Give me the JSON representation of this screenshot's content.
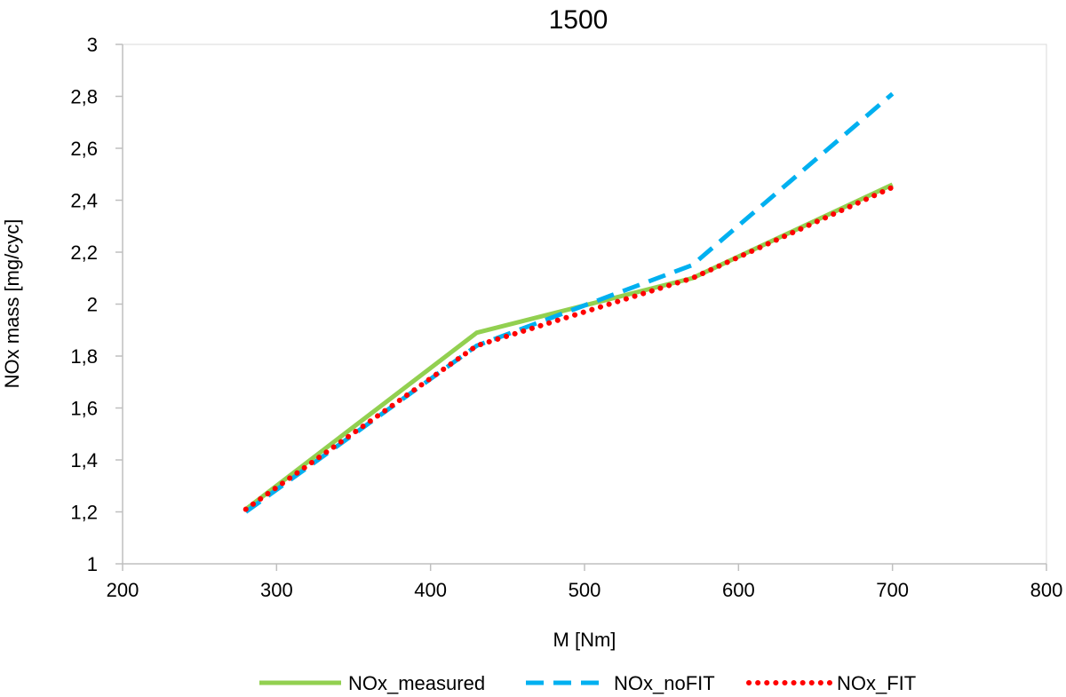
{
  "chart_data": {
    "type": "line",
    "title": "1500",
    "xlabel": "M [Nm]",
    "ylabel": "NOx mass [mg/cyc]",
    "xlim": [
      200,
      800
    ],
    "ylim": [
      1,
      3
    ],
    "x_ticks": [
      "200",
      "300",
      "400",
      "500",
      "600",
      "700",
      "800"
    ],
    "y_ticks": [
      "1",
      "1,2",
      "1,4",
      "1,6",
      "1,8",
      "2",
      "2,2",
      "2,4",
      "2,6",
      "2,8",
      "3"
    ],
    "grid": false,
    "legend_position": "bottom",
    "series": [
      {
        "name": "NOx_measured",
        "color": "#92d050",
        "style": "solid",
        "points": [
          [
            280,
            1.21
          ],
          [
            430,
            1.89
          ],
          [
            570,
            2.1
          ],
          [
            700,
            2.46
          ]
        ]
      },
      {
        "name": "NOx_noFIT",
        "color": "#00b0f0",
        "style": "dashed",
        "points": [
          [
            280,
            1.2
          ],
          [
            430,
            1.84
          ],
          [
            570,
            2.15
          ],
          [
            700,
            2.81
          ]
        ]
      },
      {
        "name": "NOx_FIT",
        "color": "#ff0000",
        "style": "dotted",
        "points": [
          [
            280,
            1.21
          ],
          [
            430,
            1.84
          ],
          [
            570,
            2.1
          ],
          [
            700,
            2.45
          ]
        ]
      }
    ]
  }
}
